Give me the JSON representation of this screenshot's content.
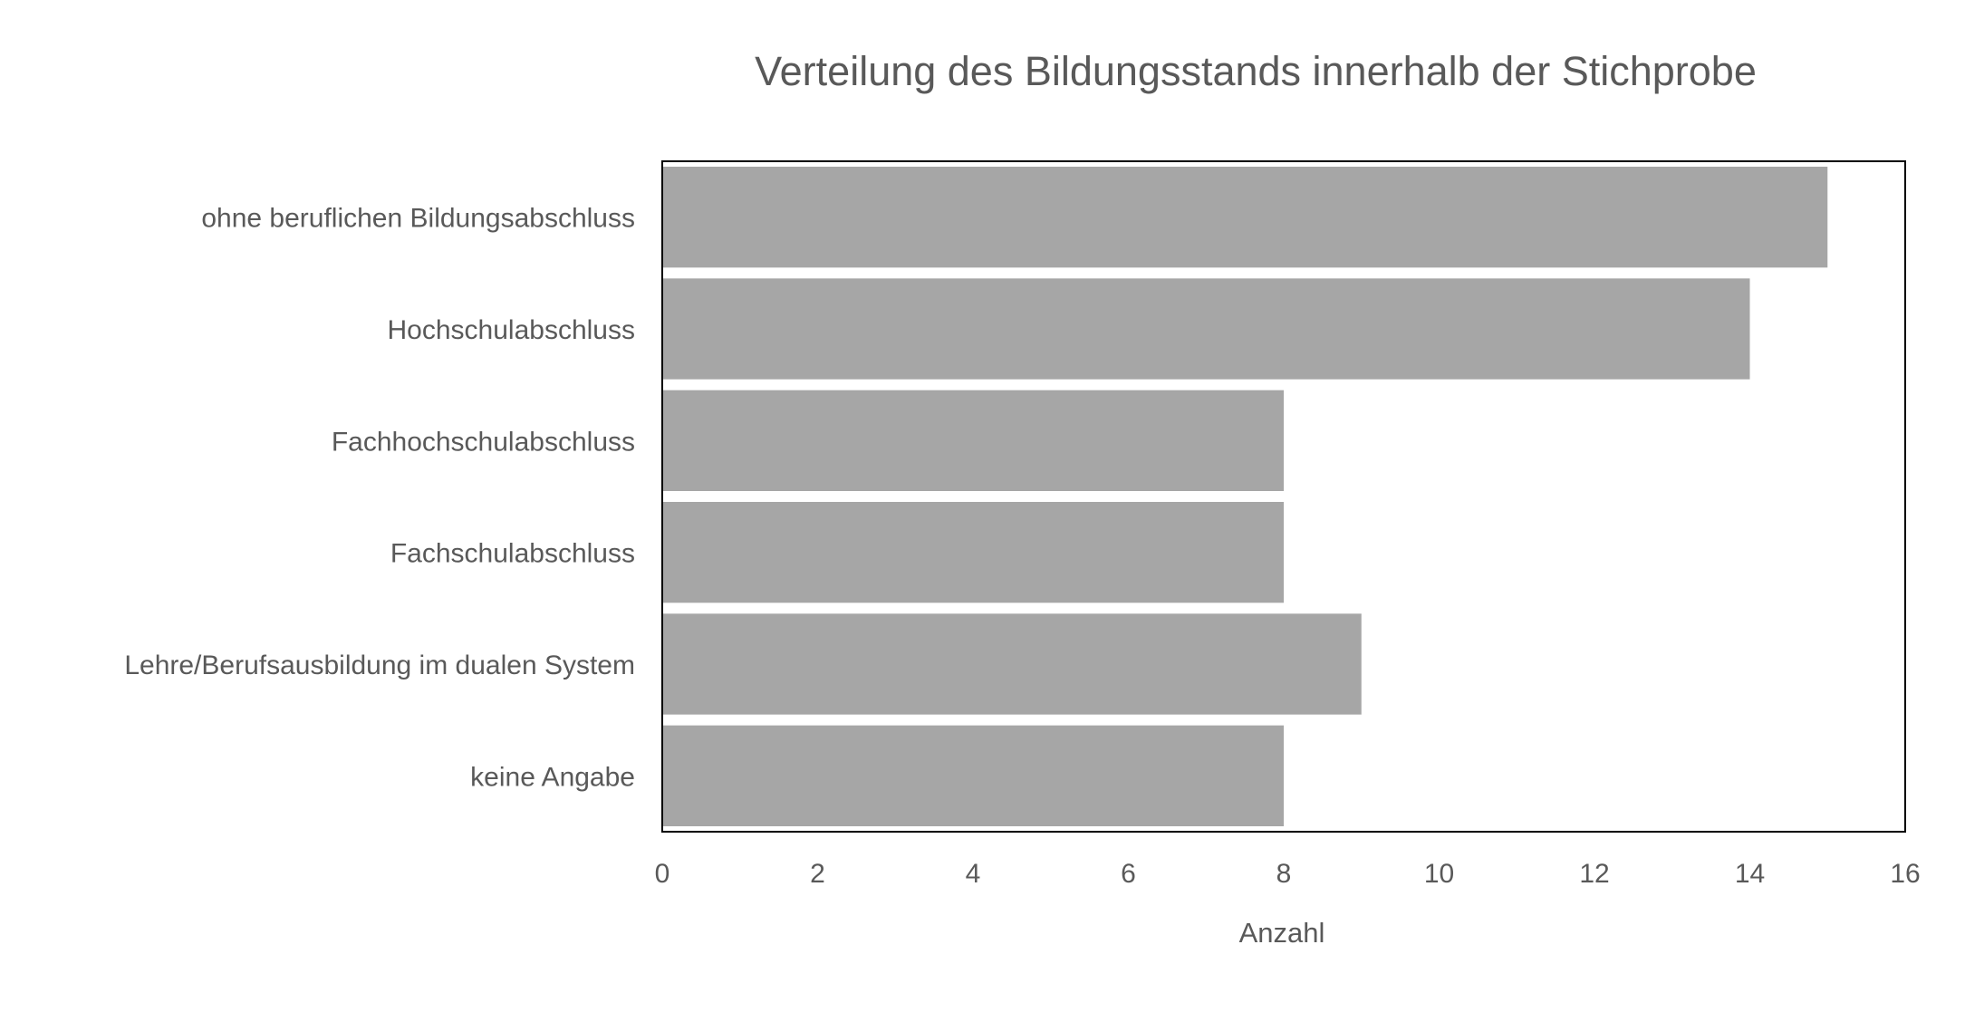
{
  "chart_data": {
    "type": "bar",
    "orientation": "horizontal",
    "title": "Verteilung des Bildungsstands innerhalb der Stichprobe",
    "xlabel": "Anzahl",
    "ylabel": "",
    "categories": [
      "ohne beruflichen Bildungsabschluss",
      "Hochschulabschluss",
      "Fachhochschulabschluss",
      "Fachschulabschluss",
      "Lehre/Berufsausbildung im dualen System",
      "keine Angabe"
    ],
    "values": [
      15,
      14,
      8,
      8,
      9,
      8
    ],
    "xlim": [
      0,
      16
    ],
    "xticks": [
      "0",
      "2",
      "4",
      "6",
      "8",
      "10",
      "12",
      "14",
      "16"
    ],
    "grid": false,
    "legend": "none",
    "bar_color": "#a6a6a6",
    "text_color": "#595959",
    "frame_color": "#000000"
  }
}
